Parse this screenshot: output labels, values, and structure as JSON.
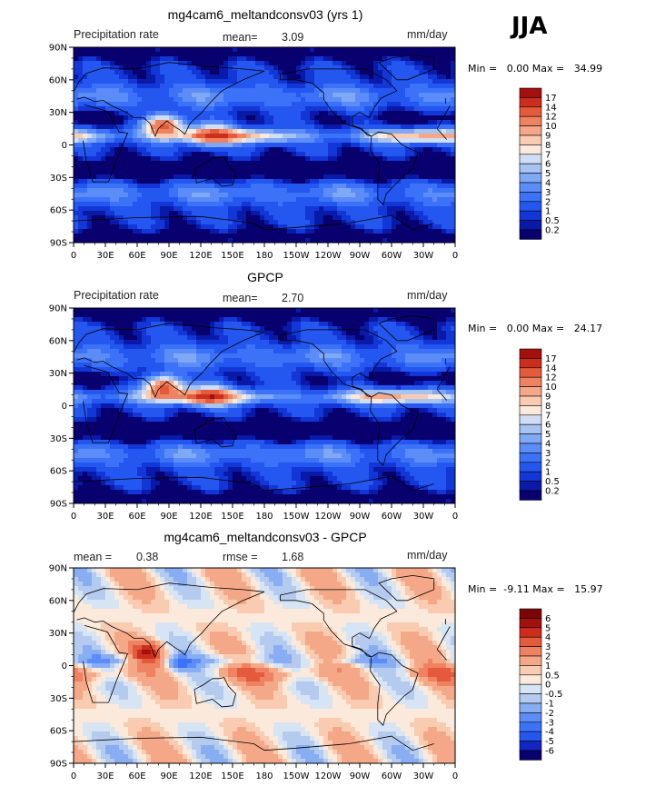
{
  "season": "JJA",
  "levels_precip": [
    "0.2",
    "0.5",
    "1",
    "2",
    "3",
    "4",
    "5",
    "6",
    "7",
    "8",
    "9",
    "10",
    "12",
    "14",
    "17"
  ],
  "levels_diff": [
    "-6",
    "-5",
    "-4",
    "-3",
    "-2",
    "-1",
    "-0.5",
    "0",
    "0.5",
    "1",
    "2",
    "3",
    "4",
    "5",
    "6"
  ],
  "colors_precip": [
    "#08006e",
    "#0a1aa8",
    "#1237d6",
    "#2457f0",
    "#3c72f8",
    "#5b8cf7",
    "#7fa8f5",
    "#a6c3f2",
    "#cfddf5",
    "#fbeadb",
    "#f9cbb0",
    "#f5a888",
    "#ef8260",
    "#e45a3c",
    "#cd2e1c",
    "#a3100e"
  ],
  "colors_diff": [
    "#08006e",
    "#1226c4",
    "#2457f0",
    "#3c72f8",
    "#5b8cf7",
    "#88adf2",
    "#b4cbef",
    "#d7e4f4",
    "#fbeadb",
    "#f9cbb0",
    "#f5a888",
    "#ef8260",
    "#e45a3c",
    "#cd2e1c",
    "#a3100e",
    "#7a0606"
  ],
  "lat_labels": [
    "90N",
    "60N",
    "30N",
    "0",
    "30S",
    "60S",
    "90S"
  ],
  "lon_labels": [
    "0",
    "30E",
    "60E",
    "90E",
    "120E",
    "150E",
    "180",
    "150W",
    "120W",
    "90W",
    "60W",
    "30W",
    "0"
  ],
  "panels": [
    {
      "title": "mg4cam6_meltandconsv03 (yrs 1)",
      "left_text": "Precipitation rate",
      "mid_key": "mean=",
      "mid_value": "3.09",
      "mid2_key": "",
      "mid2_value": "",
      "units": "mm/day",
      "min": "0.00",
      "max": "34.99",
      "kind": "precip"
    },
    {
      "title": "GPCP",
      "left_text": "Precipitation rate",
      "mid_key": "mean=",
      "mid_value": "2.70",
      "mid2_key": "",
      "mid2_value": "",
      "units": "mm/day",
      "min": "0.00",
      "max": "24.17",
      "kind": "precip"
    },
    {
      "title": "mg4cam6_meltandconsv03 - GPCP",
      "left_text": "mean =",
      "mid_key": "rmse =",
      "mid_value": "1.68",
      "left_value": "0.38",
      "units": "mm/day",
      "min": "-9.11",
      "max": "15.97",
      "kind": "diff"
    }
  ],
  "chart_data": [
    {
      "type": "heatmap",
      "title": "mg4cam6_meltandconsv03 (yrs 1)",
      "subtitle": "Precipitation rate",
      "units": "mm/day",
      "mean": 3.09,
      "min": 0.0,
      "max": 34.99,
      "xlim": [
        0,
        360
      ],
      "ylim": [
        -90,
        90
      ]
    },
    {
      "type": "heatmap",
      "title": "GPCP",
      "subtitle": "Precipitation rate",
      "units": "mm/day",
      "mean": 2.7,
      "min": 0.0,
      "max": 24.17,
      "xlim": [
        0,
        360
      ],
      "ylim": [
        -90,
        90
      ]
    },
    {
      "type": "heatmap",
      "title": "mg4cam6_meltandconsv03 - GPCP",
      "units": "mm/day",
      "mean": 0.38,
      "rmse": 1.68,
      "min": -9.11,
      "max": 15.97,
      "xlim": [
        0,
        360
      ],
      "ylim": [
        -90,
        90
      ]
    }
  ]
}
